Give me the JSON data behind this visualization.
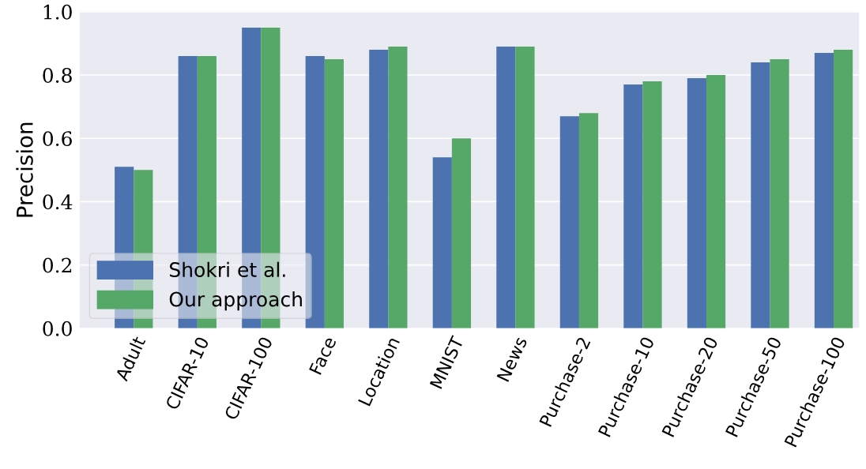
{
  "chart_data": {
    "type": "bar",
    "ylabel": "Precision",
    "categories": [
      "Adult",
      "CIFAR-10",
      "CIFAR-100",
      "Face",
      "Location",
      "MNIST",
      "News",
      "Purchase-2",
      "Purchase-10",
      "Purchase-20",
      "Purchase-50",
      "Purchase-100"
    ],
    "series": [
      {
        "name": "Shokri et al.",
        "color": "#4c72b0",
        "values": [
          0.51,
          0.86,
          0.95,
          0.86,
          0.88,
          0.54,
          0.89,
          0.67,
          0.77,
          0.79,
          0.84,
          0.87
        ]
      },
      {
        "name": "Our approach",
        "color": "#55a868",
        "values": [
          0.5,
          0.86,
          0.95,
          0.85,
          0.89,
          0.6,
          0.89,
          0.68,
          0.78,
          0.8,
          0.85,
          0.88
        ]
      }
    ],
    "ylim": [
      0.0,
      1.0
    ],
    "yticks": [
      {
        "value": 0.0,
        "label": "0.0"
      },
      {
        "value": 0.2,
        "label": "0.2"
      },
      {
        "value": 0.4,
        "label": "0.4"
      },
      {
        "value": 0.6,
        "label": "0.6"
      },
      {
        "value": 0.8,
        "label": "0.8"
      },
      {
        "value": 1.0,
        "label": "1.0"
      }
    ],
    "grid": "y",
    "legend": "bottom left"
  }
}
